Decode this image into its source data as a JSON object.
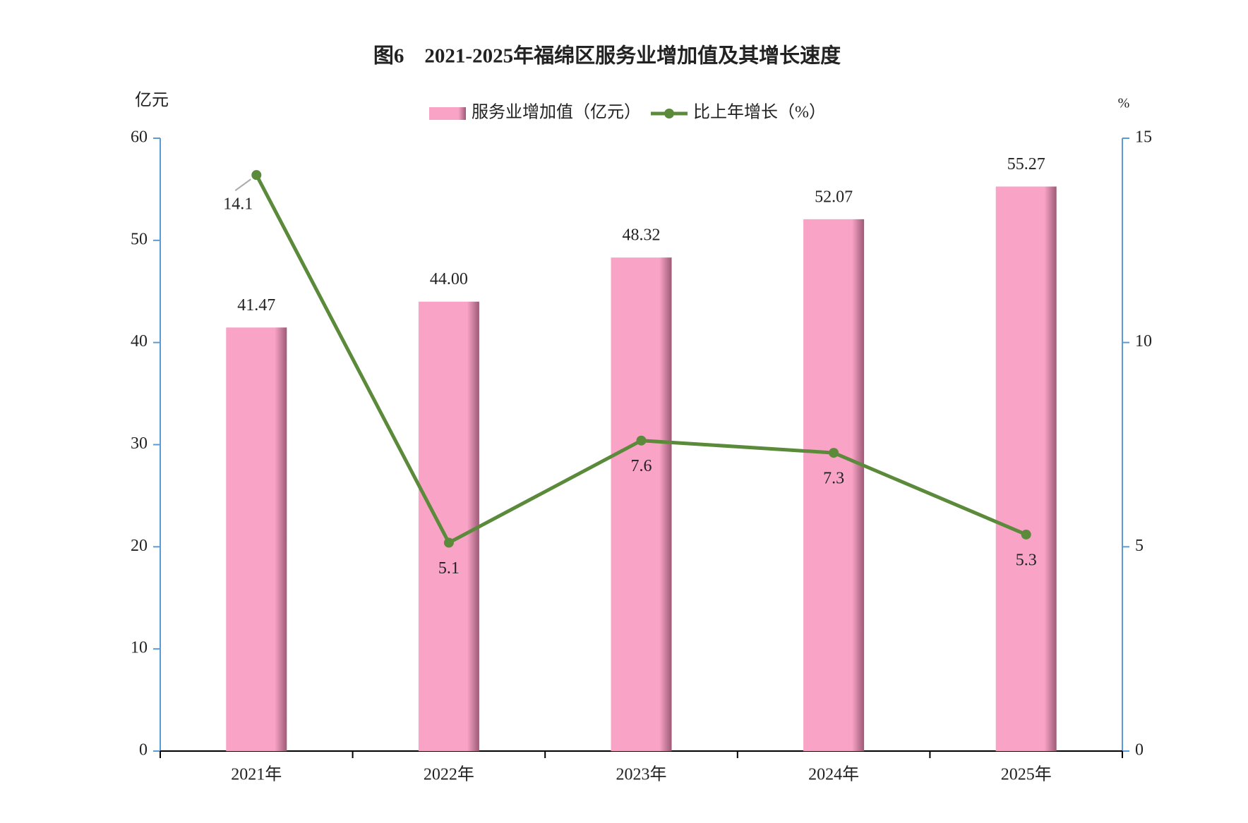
{
  "chart_data": {
    "type": "bar",
    "title": "图6　2021-2025年福绵区服务业增加值及其增长速度",
    "y_label": "亿元",
    "y2_label": "%",
    "categories": [
      "2021年",
      "2022年",
      "2023年",
      "2024年",
      "2025年"
    ],
    "series": [
      {
        "name": "服务业增加值（亿元）",
        "type": "bar",
        "color": "#f9a3c7",
        "values": [
          41.47,
          44,
          48.32,
          52.07,
          55.27
        ],
        "value_labels": [
          "41.47",
          "44.00",
          "48.32",
          "52.07",
          "55.27"
        ]
      },
      {
        "name": "比上年增长（%）",
        "type": "line",
        "axis": "y2",
        "color": "#5a8a3a",
        "values": [
          14.1,
          5.1,
          7.6,
          7.3,
          5.3
        ]
      }
    ],
    "ylim": [
      0,
      60
    ],
    "yticks": [
      0,
      10,
      20,
      30,
      40,
      50,
      60
    ],
    "y2lim": [
      0,
      15
    ],
    "y2ticks": [
      0,
      5,
      10,
      15
    ]
  }
}
